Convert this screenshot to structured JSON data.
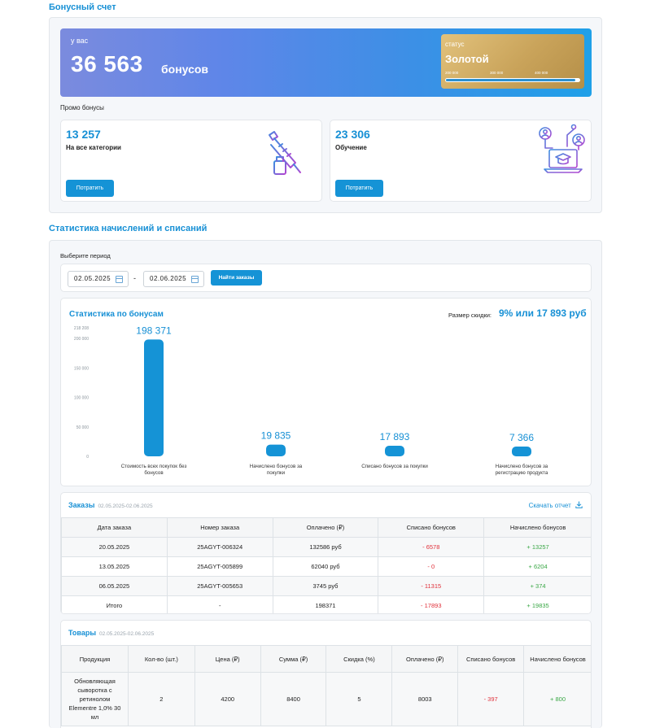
{
  "bonus_account": {
    "title": "Бонусный счет",
    "you_have": "у вас",
    "amount": "36 563",
    "unit": "бонусов",
    "status_label": "статус",
    "status_value": "Золотой",
    "status_ticks": [
      "200 000",
      "300 000",
      "400 000"
    ],
    "status_progress": 0.97,
    "promo_label": "Промо бонусы",
    "promos": [
      {
        "amount": "13 257",
        "category": "На все категории",
        "button": "Потратить",
        "icon": "syringe-vial-icon"
      },
      {
        "amount": "23 306",
        "category": "Обучение",
        "button": "Потратить",
        "icon": "education-laptop-icon"
      }
    ]
  },
  "stats": {
    "title": "Статистика начислений и списаний",
    "period_label": "Выберите период",
    "date_from": "02.05.2025",
    "date_to": "02.06.2025",
    "separator": "-",
    "find_button": "Найти заказы",
    "chart_title": "Статистика по бонусам",
    "discount_label": "Размер скидки:",
    "discount_value": "9% или 17 893 руб"
  },
  "chart_data": {
    "type": "bar",
    "title": "Статистика по бонусам",
    "categories": [
      "Стоимость всех покупок без бонусов",
      "Начислено бонусов за покупки",
      "Списано бонусов за покупки",
      "Начислено бонусов за регистрацию продукта"
    ],
    "values": [
      198371,
      19835,
      17893,
      7366
    ],
    "value_labels": [
      "198 371",
      "19 835",
      "17 893",
      "7 366"
    ],
    "yticks": [
      0,
      50000,
      100000,
      150000,
      200000,
      218208
    ],
    "ytick_labels": [
      "0",
      "50 000",
      "100 000",
      "150 000",
      "200 000",
      "218 208"
    ],
    "ylim": [
      0,
      218208
    ],
    "grid": false,
    "color": "#1593d6"
  },
  "orders": {
    "title": "Заказы",
    "range": "02.05.2025-02.06.2025",
    "download": "Скачать отчет",
    "columns": [
      "Дата заказа",
      "Номер заказа",
      "Оплачено (₽)",
      "Списано бонусов",
      "Начислено бонусов"
    ],
    "rows": [
      [
        "20.05.2025",
        "25AGYT-006324",
        "132586 руб",
        "- 6578",
        "+ 13257"
      ],
      [
        "13.05.2025",
        "25AGYT-005899",
        "62040 руб",
        "- 0",
        "+ 6204"
      ],
      [
        "06.05.2025",
        "25AGYT-005653",
        "3745 руб",
        "- 11315",
        "+ 374"
      ]
    ],
    "total": [
      "Итого",
      "-",
      "198371",
      "- 17893",
      "+ 19835"
    ]
  },
  "products": {
    "title": "Товары",
    "range": "02.05.2025-02.06.2025",
    "columns": [
      "Продукция",
      "Кол-во (шт.)",
      "Цена (₽)",
      "Сумма (₽)",
      "Скидка (%)",
      "Оплачено (₽)",
      "Списано бонусов",
      "Начислено бонусов"
    ],
    "rows": [
      [
        "Обновляющая сыворотка с ретинолом Elementre 1,0% 30 мл",
        "2",
        "4200",
        "8400",
        "5",
        "8003",
        "- 397",
        "+ 800"
      ]
    ]
  }
}
